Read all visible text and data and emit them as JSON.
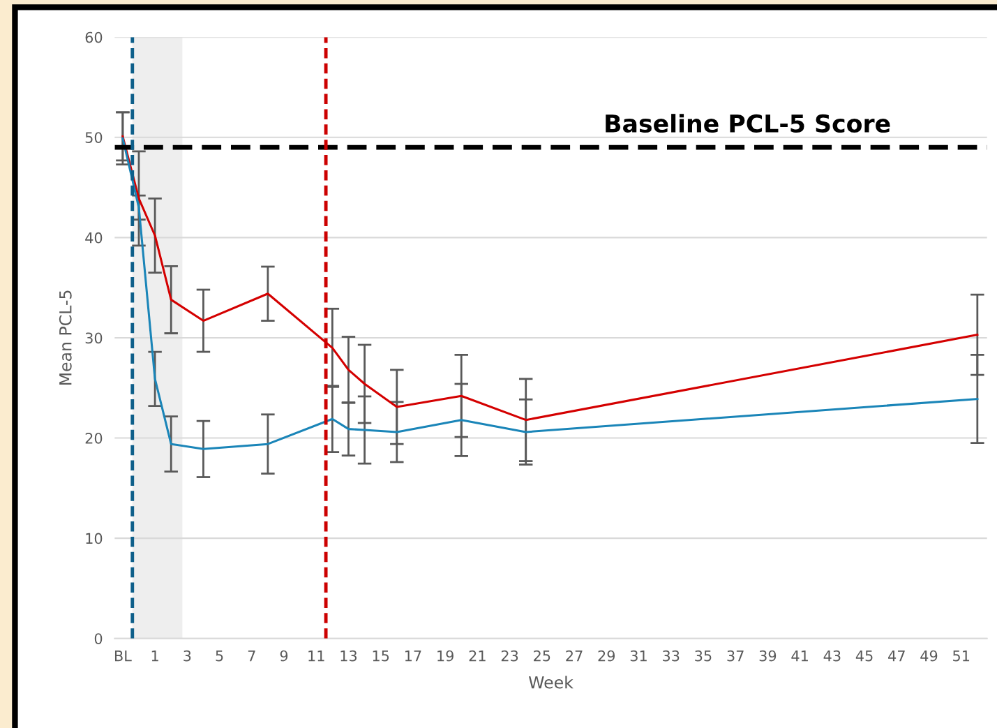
{
  "chart_data": {
    "type": "line",
    "xlabel": "Week",
    "ylabel": "Mean PCL-5",
    "x": [
      -1,
      0,
      1,
      2,
      4,
      8,
      12,
      13,
      14,
      16,
      20,
      24,
      52
    ],
    "series": [
      {
        "color": "#d40000",
        "values": [
          50.1,
          43.9,
          40.2,
          33.8,
          31.7,
          34.4,
          29.0,
          26.8,
          25.4,
          23.1,
          24.2,
          21.8,
          30.3
        ],
        "errors": [
          2.4,
          4.7,
          3.7,
          3.35,
          3.1,
          2.7,
          3.9,
          3.3,
          3.9,
          3.7,
          4.1,
          4.1,
          4.0
        ]
      },
      {
        "color": "#1a85b8",
        "values": [
          49.9,
          43.0,
          25.9,
          19.4,
          18.9,
          19.4,
          21.9,
          20.9,
          20.8,
          20.6,
          21.8,
          20.6,
          23.9
        ],
        "errors": [
          2.6,
          1.2,
          2.7,
          2.75,
          2.8,
          2.95,
          3.3,
          2.65,
          3.35,
          3.0,
          3.6,
          3.25,
          4.4
        ]
      }
    ],
    "xlim": [
      -1.5,
      52.6
    ],
    "ylim": [
      0,
      60
    ],
    "xticks": [
      {
        "value": -1,
        "label": "BL"
      },
      1,
      3,
      5,
      7,
      9,
      11,
      13,
      15,
      17,
      19,
      21,
      23,
      25,
      27,
      29,
      31,
      33,
      35,
      37,
      39,
      41,
      43,
      45,
      47,
      49,
      51
    ],
    "yticks": [
      0,
      10,
      20,
      30,
      40,
      50,
      60
    ],
    "ref_lines": [
      {
        "axis": "y",
        "value": 49,
        "label": "Baseline PCL-5 Score",
        "color": "#000000",
        "line_style": "dashed"
      },
      {
        "axis": "x",
        "value": -0.4,
        "color": "#0e5f8a",
        "line_style": "dashed"
      },
      {
        "axis": "x",
        "value": 11.6,
        "color": "#cc0000",
        "line_style": "dashed"
      }
    ],
    "bands": [
      {
        "axis": "x",
        "from": -0.4,
        "to": 2.7,
        "color": "#eeeeee"
      }
    ],
    "grid": "y",
    "legend": false,
    "marker": "none",
    "line_style": "solid"
  }
}
